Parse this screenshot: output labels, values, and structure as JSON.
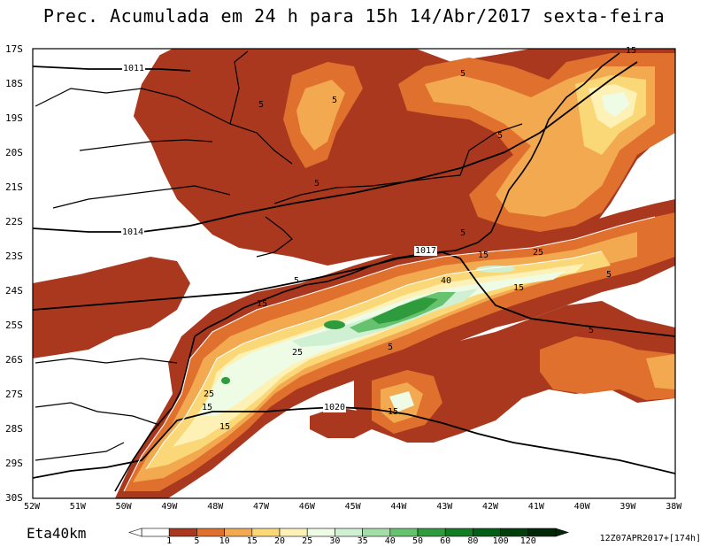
{
  "title": "Prec. Acumulada em 24 h para 15h 14/Abr/2017 sexta-feira",
  "model_name": "Eta40km",
  "run_info": "12Z07APR2017+[174h]",
  "lat_labels": [
    "17S",
    "18S",
    "19S",
    "20S",
    "21S",
    "22S",
    "23S",
    "24S",
    "25S",
    "26S",
    "27S",
    "28S",
    "29S",
    "30S"
  ],
  "lon_labels": [
    "52W",
    "51W",
    "50W",
    "49W",
    "48W",
    "47W",
    "46W",
    "45W",
    "44W",
    "43W",
    "42W",
    "41W",
    "40W",
    "39W",
    "38W"
  ],
  "isobar_labels": [
    "1011",
    "1014",
    "1017",
    "1020"
  ],
  "contour_labels": [
    "5",
    "5",
    "5",
    "5",
    "5",
    "5",
    "5",
    "5",
    "5",
    "5",
    "15",
    "15",
    "15",
    "15",
    "15",
    "15",
    "15",
    "25",
    "25",
    "25",
    "40"
  ],
  "colorbar": {
    "values": [
      "1",
      "5",
      "10",
      "15",
      "20",
      "25",
      "30",
      "35",
      "40",
      "50",
      "60",
      "80",
      "100",
      "120"
    ],
    "colors": [
      "#ffffff",
      "#a9381f",
      "#e0702e",
      "#f2a94f",
      "#fbd877",
      "#fdf1b6",
      "#eefbe5",
      "#cff0d2",
      "#a3dea9",
      "#66c26e",
      "#2e9c3d",
      "#137d26",
      "#035e17",
      "#003f0c",
      "#002707"
    ]
  },
  "colors": {
    "shade_low": "#a9381f",
    "shade_5": "#e0702e",
    "shade_10": "#f2a94f",
    "shade_15": "#fbd877",
    "shade_20": "#fdf1b6",
    "shade_25": "#eefbe5",
    "shade_30": "#cff0d2",
    "shade_40": "#66c26e",
    "shade_50": "#2e9c3d"
  }
}
